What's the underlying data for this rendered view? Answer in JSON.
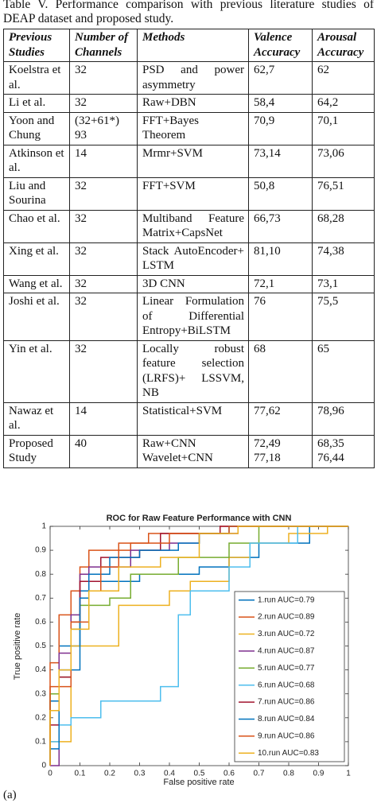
{
  "caption": "Table V. Performance comparison with previous literature studies of DEAP dataset and proposed study.",
  "table": {
    "headers": [
      "Previous Studies",
      "Number of Channels",
      "Methods",
      "Valence Accuracy",
      "Arousal Accuracy"
    ],
    "rows": [
      [
        "Koelstra et al.",
        "32",
        "PSD and power asymmetry",
        "62,7",
        "62"
      ],
      [
        "Li et al.",
        "32",
        "Raw+DBN",
        "58,4",
        "64,2"
      ],
      [
        "Yoon and Chung",
        "(32+61*) 93",
        "FFT+Bayes Theorem",
        "70,9",
        "70,1"
      ],
      [
        "Atkinson et al.",
        "14",
        "Mrmr+SVM",
        "73,14",
        "73,06"
      ],
      [
        "Liu and Sourina",
        "32",
        "FFT+SVM",
        "50,8",
        "76,51"
      ],
      [
        "Chao et al.",
        "32",
        "Multiband Feature Matrix+CapsNet",
        "66,73",
        "68,28"
      ],
      [
        "Xing et al.",
        "32",
        "Stack AutoEncoder+ LSTM",
        "81,10",
        "74,38"
      ],
      [
        "Wang et al.",
        "32",
        "3D CNN",
        "72,1",
        "73,1"
      ],
      [
        "Joshi et al.",
        "32",
        "Linear Formulation of Differential Entropy+BiLSTM",
        "76",
        "75,5"
      ],
      [
        "Yin et al.",
        "32",
        "Locally robust feature selection (LRFS)+ LSSVM, NB",
        "68",
        "65"
      ],
      [
        "Nawaz et al.",
        "14",
        "Statistical+SVM",
        "77,62",
        "78,96"
      ],
      [
        "Proposed Study",
        "40",
        [
          "Raw+CNN",
          "Wavelet+CNN"
        ],
        [
          "72,49",
          "77,18"
        ],
        [
          "68,35",
          "76,44"
        ]
      ]
    ]
  },
  "chart_data": {
    "type": "line",
    "title": "ROC for Raw Feature Performance with CNN",
    "xlabel": "False positive rate",
    "ylabel": "True positive rate",
    "xlim": [
      0,
      1
    ],
    "ylim": [
      0,
      1
    ],
    "xticks": [
      0,
      0.1,
      0.2,
      0.3,
      0.4,
      0.5,
      0.6,
      0.7,
      0.8,
      0.9,
      1
    ],
    "yticks": [
      0,
      0.1,
      0.2,
      0.3,
      0.4,
      0.5,
      0.6,
      0.7,
      0.8,
      0.9,
      1
    ],
    "series": [
      {
        "name": "1.run AUC=0.79",
        "color": "#0072BD",
        "x": [
          0,
          0,
          0.03,
          0.03,
          0.1,
          0.1,
          0.17,
          0.17,
          0.3,
          0.3,
          0.5,
          0.5,
          0.6,
          0.6,
          0.7,
          0.7,
          0.87,
          0.87,
          1
        ],
        "values": [
          0,
          0.27,
          0.27,
          0.5,
          0.5,
          0.73,
          0.73,
          0.77,
          0.77,
          0.8,
          0.8,
          0.83,
          0.83,
          0.87,
          0.87,
          0.93,
          0.93,
          1,
          1
        ]
      },
      {
        "name": "2.run AUC=0.89",
        "color": "#D95319",
        "x": [
          0,
          0,
          0.03,
          0.03,
          0.07,
          0.07,
          0.1,
          0.1,
          0.13,
          0.13,
          0.27,
          0.27,
          0.33,
          0.33,
          0.57,
          0.57,
          1
        ],
        "values": [
          0,
          0.43,
          0.43,
          0.63,
          0.63,
          0.73,
          0.73,
          0.83,
          0.83,
          0.9,
          0.9,
          0.93,
          0.93,
          0.97,
          0.97,
          1,
          1
        ]
      },
      {
        "name": "3.run AUC=0.72",
        "color": "#EDB120",
        "x": [
          0,
          0,
          0.07,
          0.07,
          0.23,
          0.23,
          0.4,
          0.4,
          0.47,
          0.47,
          0.6,
          0.6,
          0.67,
          0.67,
          0.8,
          0.8,
          0.93,
          0.93,
          1
        ],
        "values": [
          0,
          0.1,
          0.1,
          0.5,
          0.5,
          0.67,
          0.67,
          0.73,
          0.73,
          0.77,
          0.77,
          0.87,
          0.87,
          0.93,
          0.93,
          0.97,
          0.97,
          1,
          1
        ]
      },
      {
        "name": "4.run AUC=0.87",
        "color": "#7E2F8E",
        "x": [
          0,
          0.03,
          0.03,
          0.07,
          0.07,
          0.1,
          0.1,
          0.13,
          0.13,
          0.27,
          0.27,
          0.4,
          0.4,
          0.5,
          0.5,
          0.63,
          0.63,
          1
        ],
        "values": [
          0,
          0,
          0.47,
          0.47,
          0.63,
          0.63,
          0.8,
          0.8,
          0.83,
          0.83,
          0.9,
          0.9,
          0.93,
          0.93,
          0.97,
          0.97,
          1,
          1
        ]
      },
      {
        "name": "5.run AUC=0.77",
        "color": "#77AC30",
        "x": [
          0,
          0,
          0.03,
          0.03,
          0.07,
          0.07,
          0.1,
          0.1,
          0.2,
          0.2,
          0.27,
          0.27,
          0.43,
          0.43,
          0.6,
          0.6,
          0.7,
          0.7,
          1
        ],
        "values": [
          0,
          0.3,
          0.3,
          0.37,
          0.37,
          0.57,
          0.57,
          0.67,
          0.67,
          0.7,
          0.7,
          0.8,
          0.8,
          0.87,
          0.87,
          0.93,
          0.93,
          1,
          1
        ]
      },
      {
        "name": "6.run AUC=0.68",
        "color": "#4DBEEE",
        "x": [
          0,
          0,
          0.03,
          0.03,
          0.07,
          0.07,
          0.17,
          0.17,
          0.37,
          0.37,
          0.43,
          0.43,
          0.47,
          0.47,
          0.6,
          0.6,
          0.67,
          0.67,
          0.83,
          0.83,
          1
        ],
        "values": [
          0,
          0.1,
          0.1,
          0.17,
          0.17,
          0.2,
          0.2,
          0.27,
          0.27,
          0.33,
          0.33,
          0.63,
          0.63,
          0.73,
          0.73,
          0.83,
          0.83,
          0.93,
          0.93,
          1,
          1
        ]
      },
      {
        "name": "7.run AUC=0.86",
        "color": "#A2142F",
        "x": [
          0,
          0,
          0.03,
          0.03,
          0.07,
          0.07,
          0.1,
          0.1,
          0.17,
          0.17,
          0.3,
          0.3,
          0.37,
          0.37,
          0.57,
          0.57,
          1
        ],
        "values": [
          0,
          0.17,
          0.17,
          0.37,
          0.37,
          0.6,
          0.6,
          0.77,
          0.77,
          0.87,
          0.87,
          0.9,
          0.9,
          0.97,
          0.97,
          1,
          1
        ]
      },
      {
        "name": "8.run AUC=0.84",
        "color": "#0072BD",
        "x": [
          0,
          0,
          0.03,
          0.03,
          0.1,
          0.1,
          0.13,
          0.13,
          0.2,
          0.2,
          0.3,
          0.3,
          0.43,
          0.43,
          0.5,
          0.5,
          0.6,
          0.6,
          1
        ],
        "values": [
          0,
          0.07,
          0.07,
          0.4,
          0.4,
          0.7,
          0.7,
          0.8,
          0.8,
          0.87,
          0.87,
          0.9,
          0.9,
          0.93,
          0.93,
          0.97,
          0.97,
          1,
          1
        ]
      },
      {
        "name": "9.run AUC=0.86",
        "color": "#D95319",
        "x": [
          0,
          0,
          0.07,
          0.07,
          0.13,
          0.13,
          0.17,
          0.17,
          0.23,
          0.23,
          0.4,
          0.4,
          0.6,
          0.6,
          1
        ],
        "values": [
          0,
          0.33,
          0.33,
          0.6,
          0.6,
          0.73,
          0.73,
          0.83,
          0.83,
          0.93,
          0.93,
          0.97,
          0.97,
          1,
          1
        ]
      },
      {
        "name": "10.run AUC=0.83",
        "color": "#EDB120",
        "x": [
          0,
          0,
          0.03,
          0.03,
          0.07,
          0.07,
          0.13,
          0.13,
          0.23,
          0.23,
          0.37,
          0.37,
          0.5,
          0.5,
          0.63,
          0.63,
          1
        ],
        "values": [
          0,
          0.23,
          0.23,
          0.4,
          0.4,
          0.57,
          0.57,
          0.73,
          0.73,
          0.83,
          0.83,
          0.87,
          0.87,
          0.97,
          0.97,
          1,
          1
        ]
      }
    ]
  },
  "figure_label": "(a)"
}
